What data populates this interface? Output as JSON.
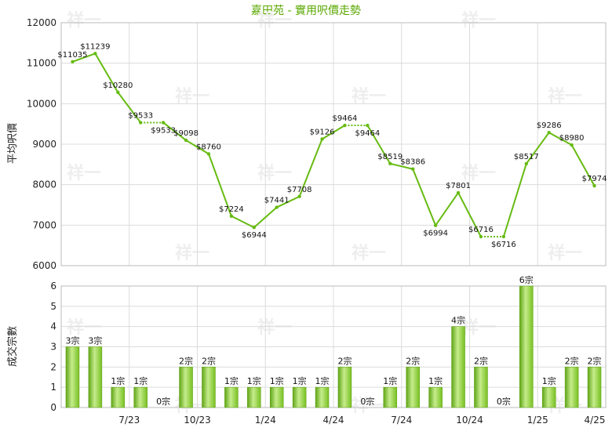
{
  "chart_data": [
    {
      "type": "line",
      "title": "嘉田苑 - 實用呎價走勢",
      "ylabel": "平均呎價",
      "ylim": [
        6000,
        12000
      ],
      "yticks": [
        "12000",
        "11000",
        "10000",
        "9000",
        "8000",
        "7000",
        "6000"
      ],
      "grid": true,
      "line_color": "#66bb11",
      "series": [
        {
          "values": [
            11035,
            11239,
            10280,
            9533,
            9533,
            9098,
            8760,
            7224,
            6944,
            7441,
            7708,
            9126,
            9464,
            9464,
            8519,
            8386,
            6994,
            7801,
            6716,
            6716,
            8517,
            9286,
            8980,
            7974
          ],
          "labels": [
            "$11035",
            "$11239",
            "$10280",
            "$9533",
            "$9533",
            "$9098",
            "$8760",
            "$7224",
            "$6944",
            "$7441",
            "$7708",
            "$9126",
            "$9464",
            "$9464",
            "$8519",
            "$8386",
            "$6994",
            "$7801",
            "$6716",
            "$6716",
            "$8517",
            "$9286",
            "$8980",
            "$7974"
          ],
          "carried_forward": [
            false,
            false,
            false,
            false,
            true,
            false,
            false,
            false,
            false,
            false,
            false,
            false,
            false,
            true,
            false,
            false,
            false,
            false,
            false,
            true,
            false,
            false,
            false,
            false
          ]
        }
      ]
    },
    {
      "type": "bar",
      "ylabel": "成交宗數",
      "ylim": [
        0,
        6
      ],
      "yticks": [
        "6",
        "5",
        "4",
        "3",
        "2",
        "1",
        "0"
      ],
      "xtick_labels": [
        "7/23",
        "10/23",
        "1/24",
        "4/24",
        "7/24",
        "10/24",
        "1/25",
        "4/25"
      ],
      "values": [
        3,
        3,
        1,
        1,
        0,
        2,
        2,
        1,
        1,
        1,
        1,
        1,
        2,
        0,
        1,
        2,
        1,
        4,
        2,
        0,
        6,
        1,
        2,
        2
      ],
      "labels": [
        "3宗",
        "3宗",
        "1宗",
        "1宗",
        "0宗",
        "2宗",
        "2宗",
        "1宗",
        "1宗",
        "1宗",
        "1宗",
        "1宗",
        "2宗",
        "0宗",
        "1宗",
        "2宗",
        "1宗",
        "4宗",
        "2宗",
        "0宗",
        "6宗",
        "1宗",
        "2宗",
        "2宗"
      ],
      "bar_color": "#77c021"
    }
  ],
  "watermark": "祥一"
}
